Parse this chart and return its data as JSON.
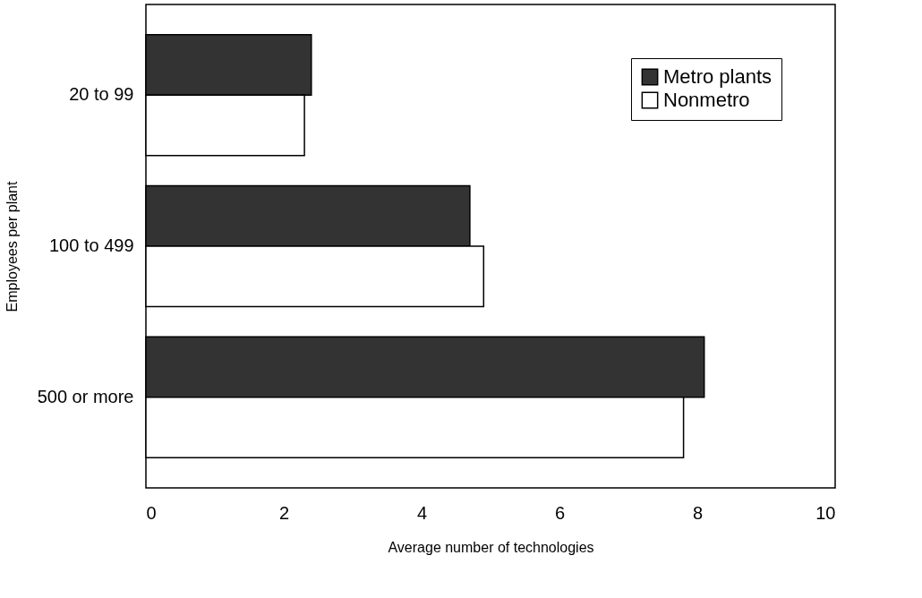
{
  "chart_data": {
    "type": "bar",
    "orientation": "horizontal",
    "xlabel": "Average number of technologies",
    "ylabel": "Employees per plant",
    "categories": [
      "20 to 99",
      "100 to 499",
      "500 or more"
    ],
    "series": [
      {
        "name": "Metro plants",
        "color": "#333333",
        "values": [
          2.4,
          4.7,
          8.1
        ]
      },
      {
        "name": "Nonmetro",
        "color": "#ffffff",
        "values": [
          2.3,
          4.9,
          7.8
        ]
      }
    ],
    "xlim": [
      0,
      10
    ],
    "xticks": [
      0,
      2,
      4,
      6,
      8,
      10
    ],
    "grid": false,
    "legend": "top right"
  }
}
